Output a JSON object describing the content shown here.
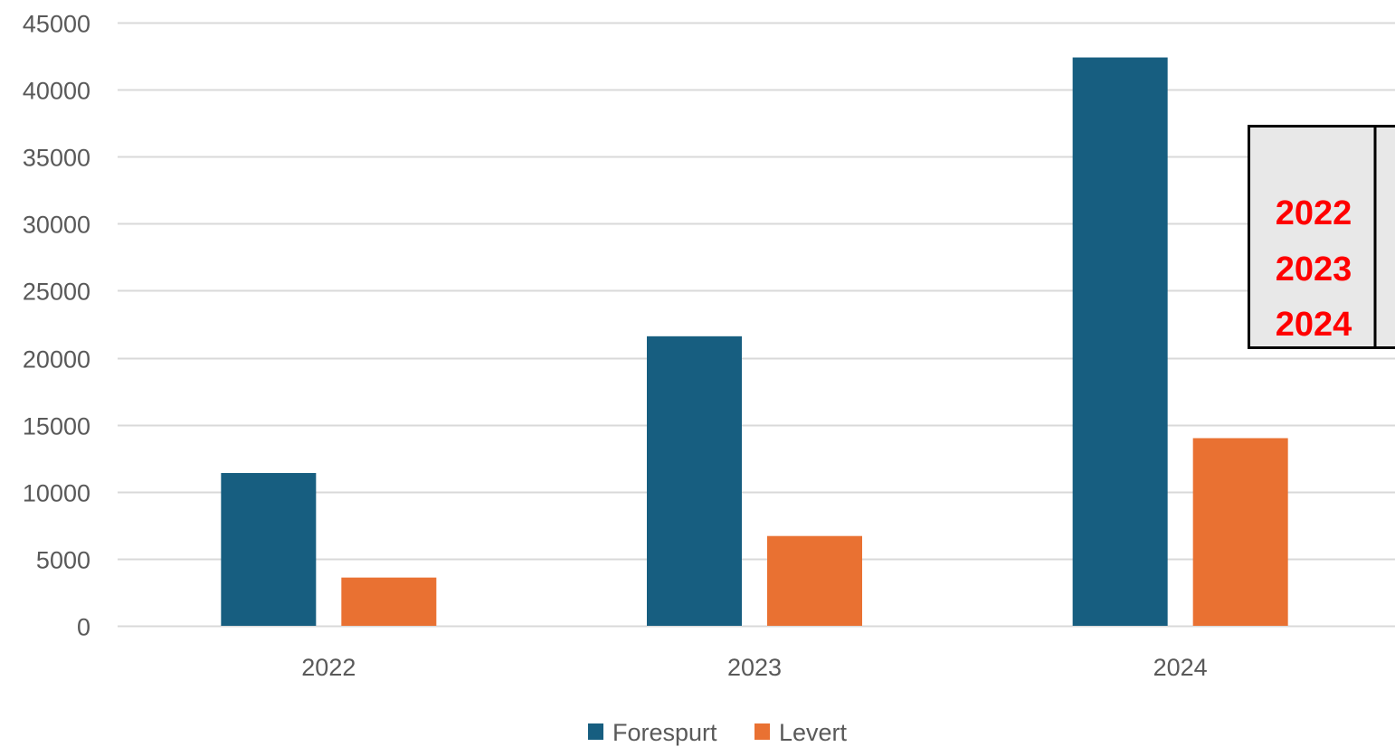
{
  "chart_data": {
    "type": "bar",
    "title": "",
    "xlabel": "",
    "ylabel": "",
    "categories": [
      "2022",
      "2023",
      "2024"
    ],
    "series": [
      {
        "name": "Forespurt",
        "color": "#175e80",
        "values": [
          11400,
          21600,
          42400
        ]
      },
      {
        "name": "Levert",
        "color": "#e97132",
        "values": [
          3600,
          6700,
          14000
        ]
      }
    ],
    "ylim": [
      0,
      45000
    ],
    "yticks": [
      "0",
      "5000",
      "10000",
      "15000",
      "20000",
      "25000",
      "30000",
      "35000",
      "40000",
      "45000"
    ],
    "grid": true,
    "legend_position": "bottom"
  },
  "overlay_table": {
    "rows": [
      "2022",
      "2023",
      "2024"
    ],
    "text_color": "#ff0000",
    "fill_color": "#e8e8e8"
  }
}
